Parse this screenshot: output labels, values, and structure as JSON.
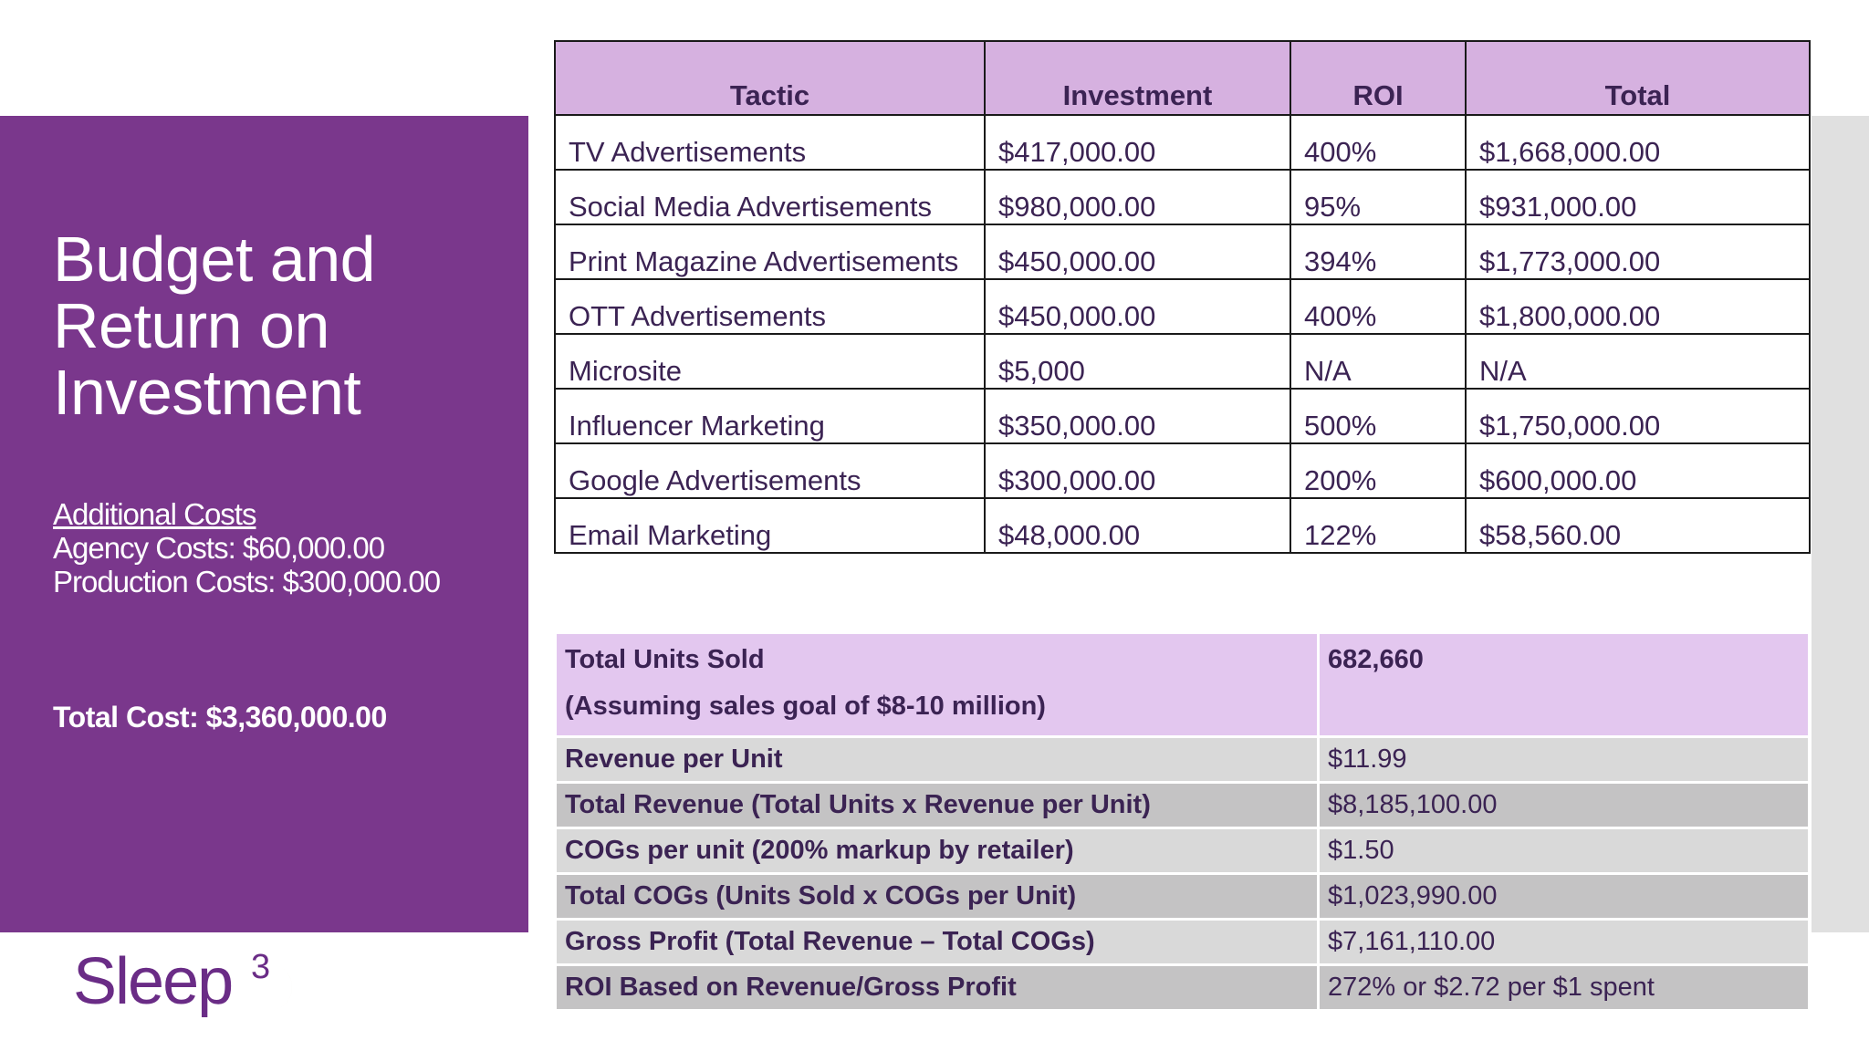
{
  "slide": {
    "title_lines": [
      "Budget and",
      "Return on",
      "Investment"
    ],
    "additional_costs": {
      "heading": "Additional Costs",
      "agency": "Agency Costs: $60,000.00",
      "production": "Production Costs: $300,000.00"
    },
    "total_cost": "Total Cost: $3,360,000.00",
    "logo": {
      "text": "Sleep",
      "superscript": "3"
    }
  },
  "tactics_table": {
    "headers": [
      "Tactic",
      "Investment",
      "ROI",
      "Total"
    ],
    "rows": [
      [
        "TV Advertisements",
        "$417,000.00",
        "400%",
        "$1,668,000.00"
      ],
      [
        "Social Media Advertisements",
        "$980,000.00",
        "95%",
        "$931,000.00"
      ],
      [
        "Print Magazine Advertisements",
        "$450,000.00",
        "394%",
        "$1,773,000.00"
      ],
      [
        "OTT Advertisements",
        "$450,000.00",
        "400%",
        "$1,800,000.00"
      ],
      [
        "Microsite",
        "$5,000",
        "N/A",
        "N/A"
      ],
      [
        "Influencer Marketing",
        "$350,000.00",
        "500%",
        "$1,750,000.00"
      ],
      [
        "Google Advertisements",
        "$300,000.00",
        "200%",
        "$600,000.00"
      ],
      [
        "Email Marketing",
        "$48,000.00",
        "122%",
        "$58,560.00"
      ]
    ]
  },
  "summary_table": {
    "head": {
      "label": "Total Units Sold",
      "sublabel": "(Assuming sales goal of $8-10 million)",
      "value": "682,660"
    },
    "rows": [
      {
        "label": "Revenue per Unit",
        "value": "$11.99"
      },
      {
        "label": "Total Revenue (Total Units x Revenue per Unit)",
        "value": "$8,185,100.00"
      },
      {
        "label": "COGs per unit (200% markup by retailer)",
        "value": "$1.50"
      },
      {
        "label": "Total COGs (Units Sold x COGs per Unit)",
        "value": "$1,023,990.00"
      },
      {
        "label": "Gross Profit (Total Revenue – Total COGs)",
        "value": "$7,161,110.00"
      },
      {
        "label": "ROI Based on Revenue/Gross Profit",
        "value": "272% or $2.72 per $1 spent"
      }
    ]
  },
  "colors": {
    "panel_purple": "#7a378c",
    "header_lavender": "#d6b1e0",
    "summary_head": "#e3c7ef",
    "row_light": "#d9d9d9",
    "row_dark": "#c4c3c4",
    "text_dark_purple": "#3b2353",
    "logo_purple": "#6a2c86",
    "logo_gold": "#c9b35d"
  }
}
